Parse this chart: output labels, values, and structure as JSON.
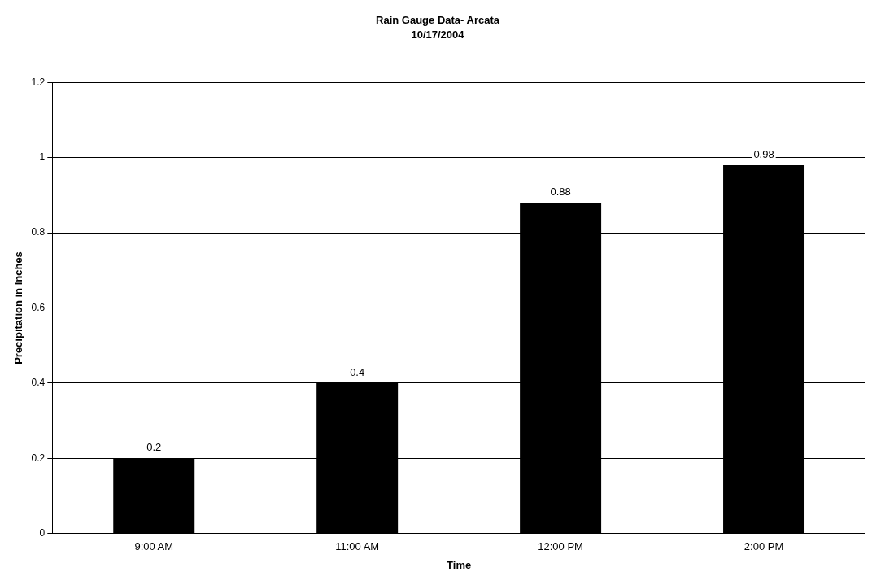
{
  "chart_data": {
    "type": "bar",
    "title": "Rain Gauge Data- Arcata",
    "subtitle": "10/17/2004",
    "xlabel": "Time",
    "ylabel": "Precipitation in Inches",
    "categories": [
      "9:00 AM",
      "11:00 AM",
      "12:00 PM",
      "2:00 PM"
    ],
    "values": [
      0.2,
      0.4,
      0.88,
      0.98
    ],
    "color": "#000000",
    "ylim": [
      0,
      1.2
    ],
    "yticks": [
      0,
      0.2,
      0.4,
      0.6,
      0.8,
      1,
      1.2
    ],
    "grid": "y",
    "data_labels": true,
    "legend": false
  }
}
